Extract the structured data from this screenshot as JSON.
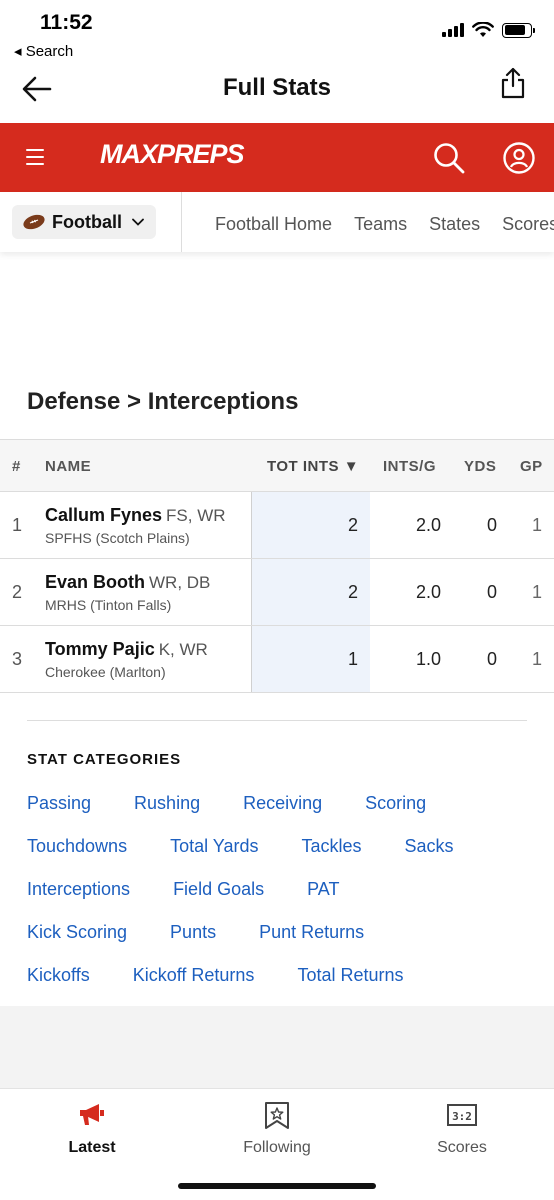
{
  "status_bar": {
    "time": "11:52",
    "back_app": "◂ Search"
  },
  "nav": {
    "title": "Full Stats"
  },
  "brand": {
    "logo": "MAXPREPS",
    "color": "#d52b1e"
  },
  "subnav": {
    "sport": "Football",
    "links": [
      "Football Home",
      "Teams",
      "States",
      "Scores"
    ]
  },
  "section": {
    "title": "Defense > Interceptions"
  },
  "table": {
    "headers": {
      "num": "#",
      "name": "NAME",
      "tot_ints": "TOT INTS ▼",
      "ints_g": "INTS/G",
      "yds": "YDS",
      "gp": "GP"
    },
    "rows": [
      {
        "num": "1",
        "name": "Callum Fynes",
        "pos": "FS, WR",
        "school": "SPFHS (Scotch Plains)",
        "tot_ints": "2",
        "ints_g": "2.0",
        "yds": "0",
        "gp": "1"
      },
      {
        "num": "2",
        "name": "Evan Booth",
        "pos": "WR, DB",
        "school": "MRHS (Tinton Falls)",
        "tot_ints": "2",
        "ints_g": "2.0",
        "yds": "0",
        "gp": "1"
      },
      {
        "num": "3",
        "name": "Tommy Pajic",
        "pos": "K, WR",
        "school": "Cherokee (Marlton)",
        "tot_ints": "1",
        "ints_g": "1.0",
        "yds": "0",
        "gp": "1"
      }
    ]
  },
  "categories": {
    "title": "STAT CATEGORIES",
    "rows": [
      [
        "Passing",
        "Rushing",
        "Receiving",
        "Scoring"
      ],
      [
        "Touchdowns",
        "Total Yards",
        "Tackles",
        "Sacks"
      ],
      [
        "Interceptions",
        "Field Goals",
        "PAT"
      ],
      [
        "Kick Scoring",
        "Punts",
        "Punt Returns"
      ],
      [
        "Kickoffs",
        "Kickoff Returns",
        "Total Returns"
      ]
    ]
  },
  "tabs": [
    {
      "label": "Latest",
      "icon": "megaphone-icon",
      "active": true
    },
    {
      "label": "Following",
      "icon": "bookmark-star-icon",
      "active": false
    },
    {
      "label": "Scores",
      "icon": "scoreboard-icon",
      "active": false
    }
  ]
}
